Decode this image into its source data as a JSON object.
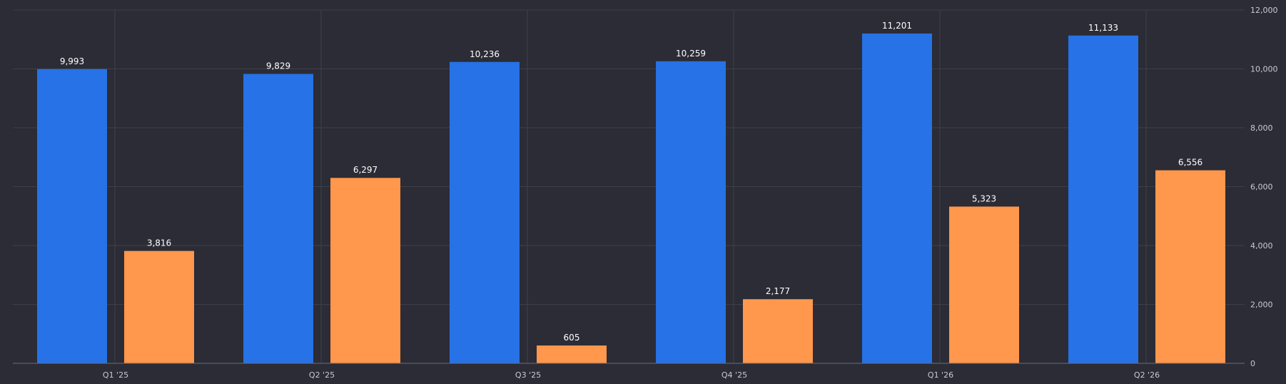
{
  "chart_data": {
    "type": "bar",
    "categories": [
      "Q1 '25",
      "Q2 '25",
      "Q3 '25",
      "Q4 '25",
      "Q1 '26",
      "Q2 '26"
    ],
    "series": [
      {
        "values": [
          9993,
          9829,
          10236,
          10259,
          11201,
          11133
        ],
        "color": "#2672e6"
      },
      {
        "values": [
          3816,
          6297,
          605,
          2177,
          5323,
          6556
        ],
        "color": "#ff974c"
      }
    ],
    "value_labels": [
      [
        "9,993",
        "9,829",
        "10,236",
        "10,259",
        "11,201",
        "11,133"
      ],
      [
        "3,816",
        "6,297",
        "605",
        "2,177",
        "5,323",
        "6,556"
      ]
    ],
    "ylim": [
      0,
      12000
    ],
    "y_ticks": [
      0,
      2000,
      4000,
      6000,
      8000,
      10000,
      12000
    ],
    "y_tick_labels": [
      "0",
      "2,000",
      "4,000",
      "6,000",
      "8,000",
      "10,000",
      "12,000"
    ],
    "y_axis_position": "right",
    "grid": true,
    "title": "",
    "xlabel": "",
    "ylabel": ""
  }
}
